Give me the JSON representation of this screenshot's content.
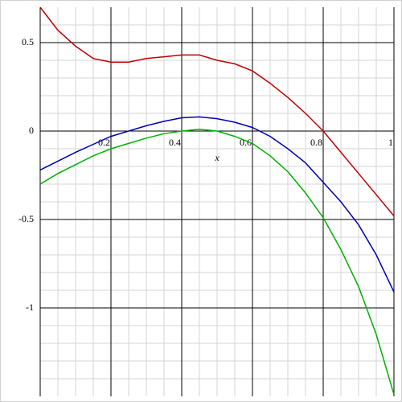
{
  "chart_data": {
    "type": "line",
    "axis_label_x": "x",
    "x": [
      0,
      0.05,
      0.1,
      0.15,
      0.2,
      0.25,
      0.3,
      0.35,
      0.4,
      0.45,
      0.5,
      0.55,
      0.6,
      0.65,
      0.7,
      0.75,
      0.8,
      0.85,
      0.9,
      0.95,
      1
    ],
    "series": [
      {
        "color": "#c00000",
        "values": [
          0.7,
          0.57,
          0.48,
          0.41,
          0.39,
          0.39,
          0.41,
          0.42,
          0.43,
          0.43,
          0.4,
          0.38,
          0.34,
          0.27,
          0.19,
          0.1,
          0,
          -0.12,
          -0.24,
          -0.36,
          -0.48
        ]
      },
      {
        "color": "#0000b0",
        "values": [
          -0.22,
          -0.17,
          -0.12,
          -0.075,
          -0.03,
          0,
          0.03,
          0.055,
          0.075,
          0.08,
          0.07,
          0.05,
          0.02,
          -0.03,
          -0.1,
          -0.18,
          -0.29,
          -0.4,
          -0.53,
          -0.7,
          -0.91
        ]
      },
      {
        "color": "#00b000",
        "values": [
          -0.3,
          -0.24,
          -0.19,
          -0.14,
          -0.1,
          -0.07,
          -0.04,
          -0.015,
          0,
          0.01,
          0,
          -0.03,
          -0.07,
          -0.14,
          -0.23,
          -0.35,
          -0.49,
          -0.67,
          -0.88,
          -1.15,
          -1.49
        ]
      }
    ],
    "xlim": [
      0,
      1
    ],
    "ylim": [
      -1.5,
      0.7
    ],
    "xticks": [
      0.2,
      0.4,
      0.6,
      0.8,
      1
    ],
    "yticks": [
      0.5,
      0,
      -0.5,
      -1
    ],
    "minor_xticks": [
      0.05,
      0.1,
      0.15,
      0.25,
      0.3,
      0.35,
      0.45,
      0.5,
      0.55,
      0.65,
      0.7,
      0.75,
      0.85,
      0.9,
      0.95
    ],
    "minor_yticks": [
      0.6,
      0.4,
      0.3,
      0.2,
      0.1,
      -0.1,
      -0.2,
      -0.3,
      -0.4,
      -0.6,
      -0.7,
      -0.8,
      -0.9,
      -1.1,
      -1.2,
      -1.3,
      -1.4
    ],
    "grid": true
  }
}
